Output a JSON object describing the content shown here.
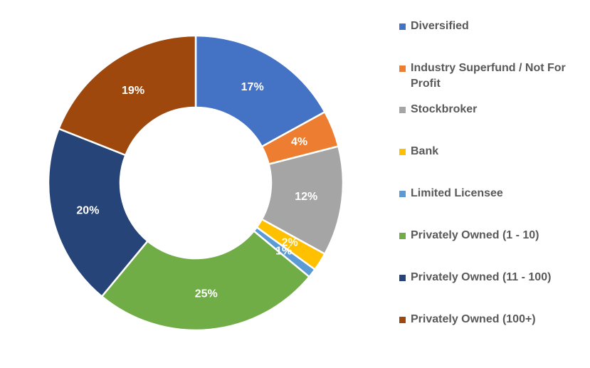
{
  "chart_data": {
    "type": "pie",
    "donut": true,
    "title": "",
    "legend_position": "right",
    "slices": [
      {
        "label": "Diversified",
        "value": 17,
        "display": "17%",
        "color": "#4472C4"
      },
      {
        "label": "Industry Superfund / Not For Profit",
        "value": 4,
        "display": "4%",
        "color": "#ED7D31"
      },
      {
        "label": "Stockbroker",
        "value": 12,
        "display": "12%",
        "color": "#A5A5A5"
      },
      {
        "label": "Bank",
        "value": 2,
        "display": "2%",
        "color": "#FFC000"
      },
      {
        "label": "Limited Licensee",
        "value": 1,
        "display": "1%",
        "color": "#5B9BD5"
      },
      {
        "label": "Privately Owned (1 - 10)",
        "value": 25,
        "display": "25%",
        "color": "#70AD47"
      },
      {
        "label": "Privately Owned (11 - 100)",
        "value": 20,
        "display": "20%",
        "color": "#264478"
      },
      {
        "label": "Privately Owned (100+)",
        "value": 19,
        "display": "19%",
        "color": "#9E480E"
      }
    ]
  }
}
